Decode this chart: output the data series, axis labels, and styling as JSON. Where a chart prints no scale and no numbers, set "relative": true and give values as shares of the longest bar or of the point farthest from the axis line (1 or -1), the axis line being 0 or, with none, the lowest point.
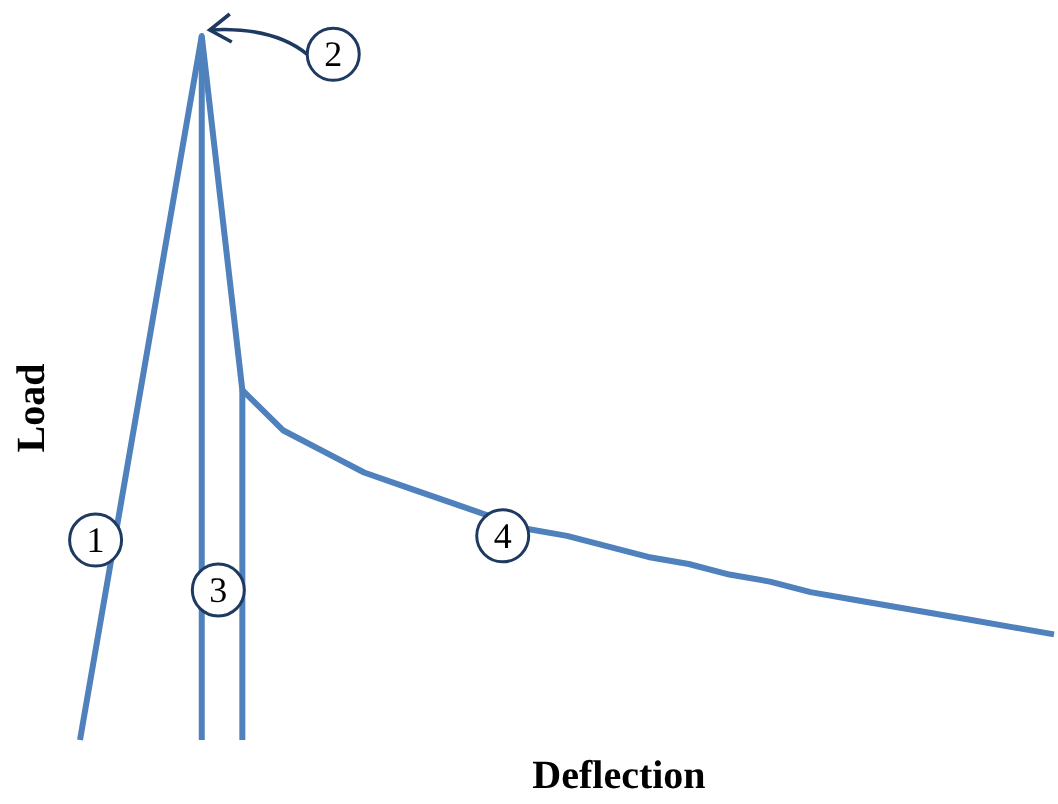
{
  "chart_data": {
    "type": "line",
    "relative": true,
    "xlabel": "Deflection",
    "ylabel": "Load",
    "marker": "none",
    "line_style": "solid",
    "grid": false,
    "categories": [
      null,
      null,
      null,
      null,
      null,
      null,
      null,
      null,
      null,
      null,
      null,
      null,
      null,
      null,
      null,
      null,
      null,
      null,
      null,
      null,
      null,
      null,
      null,
      null,
      null
    ],
    "series": [
      {
        "color": "#4f81bd",
        "values": [
          0,
          0.333,
          0.667,
          1,
          0.497,
          0.44,
          0.41,
          0.38,
          0.36,
          0.34,
          0.32,
          0.3,
          0.29,
          0.275,
          0.26,
          0.25,
          0.235,
          0.225,
          0.21,
          0.2,
          0.19,
          0.18,
          0.17,
          0.16,
          0.15
        ]
      }
    ],
    "annotations": [
      "1",
      "2",
      "3",
      "4"
    ]
  }
}
